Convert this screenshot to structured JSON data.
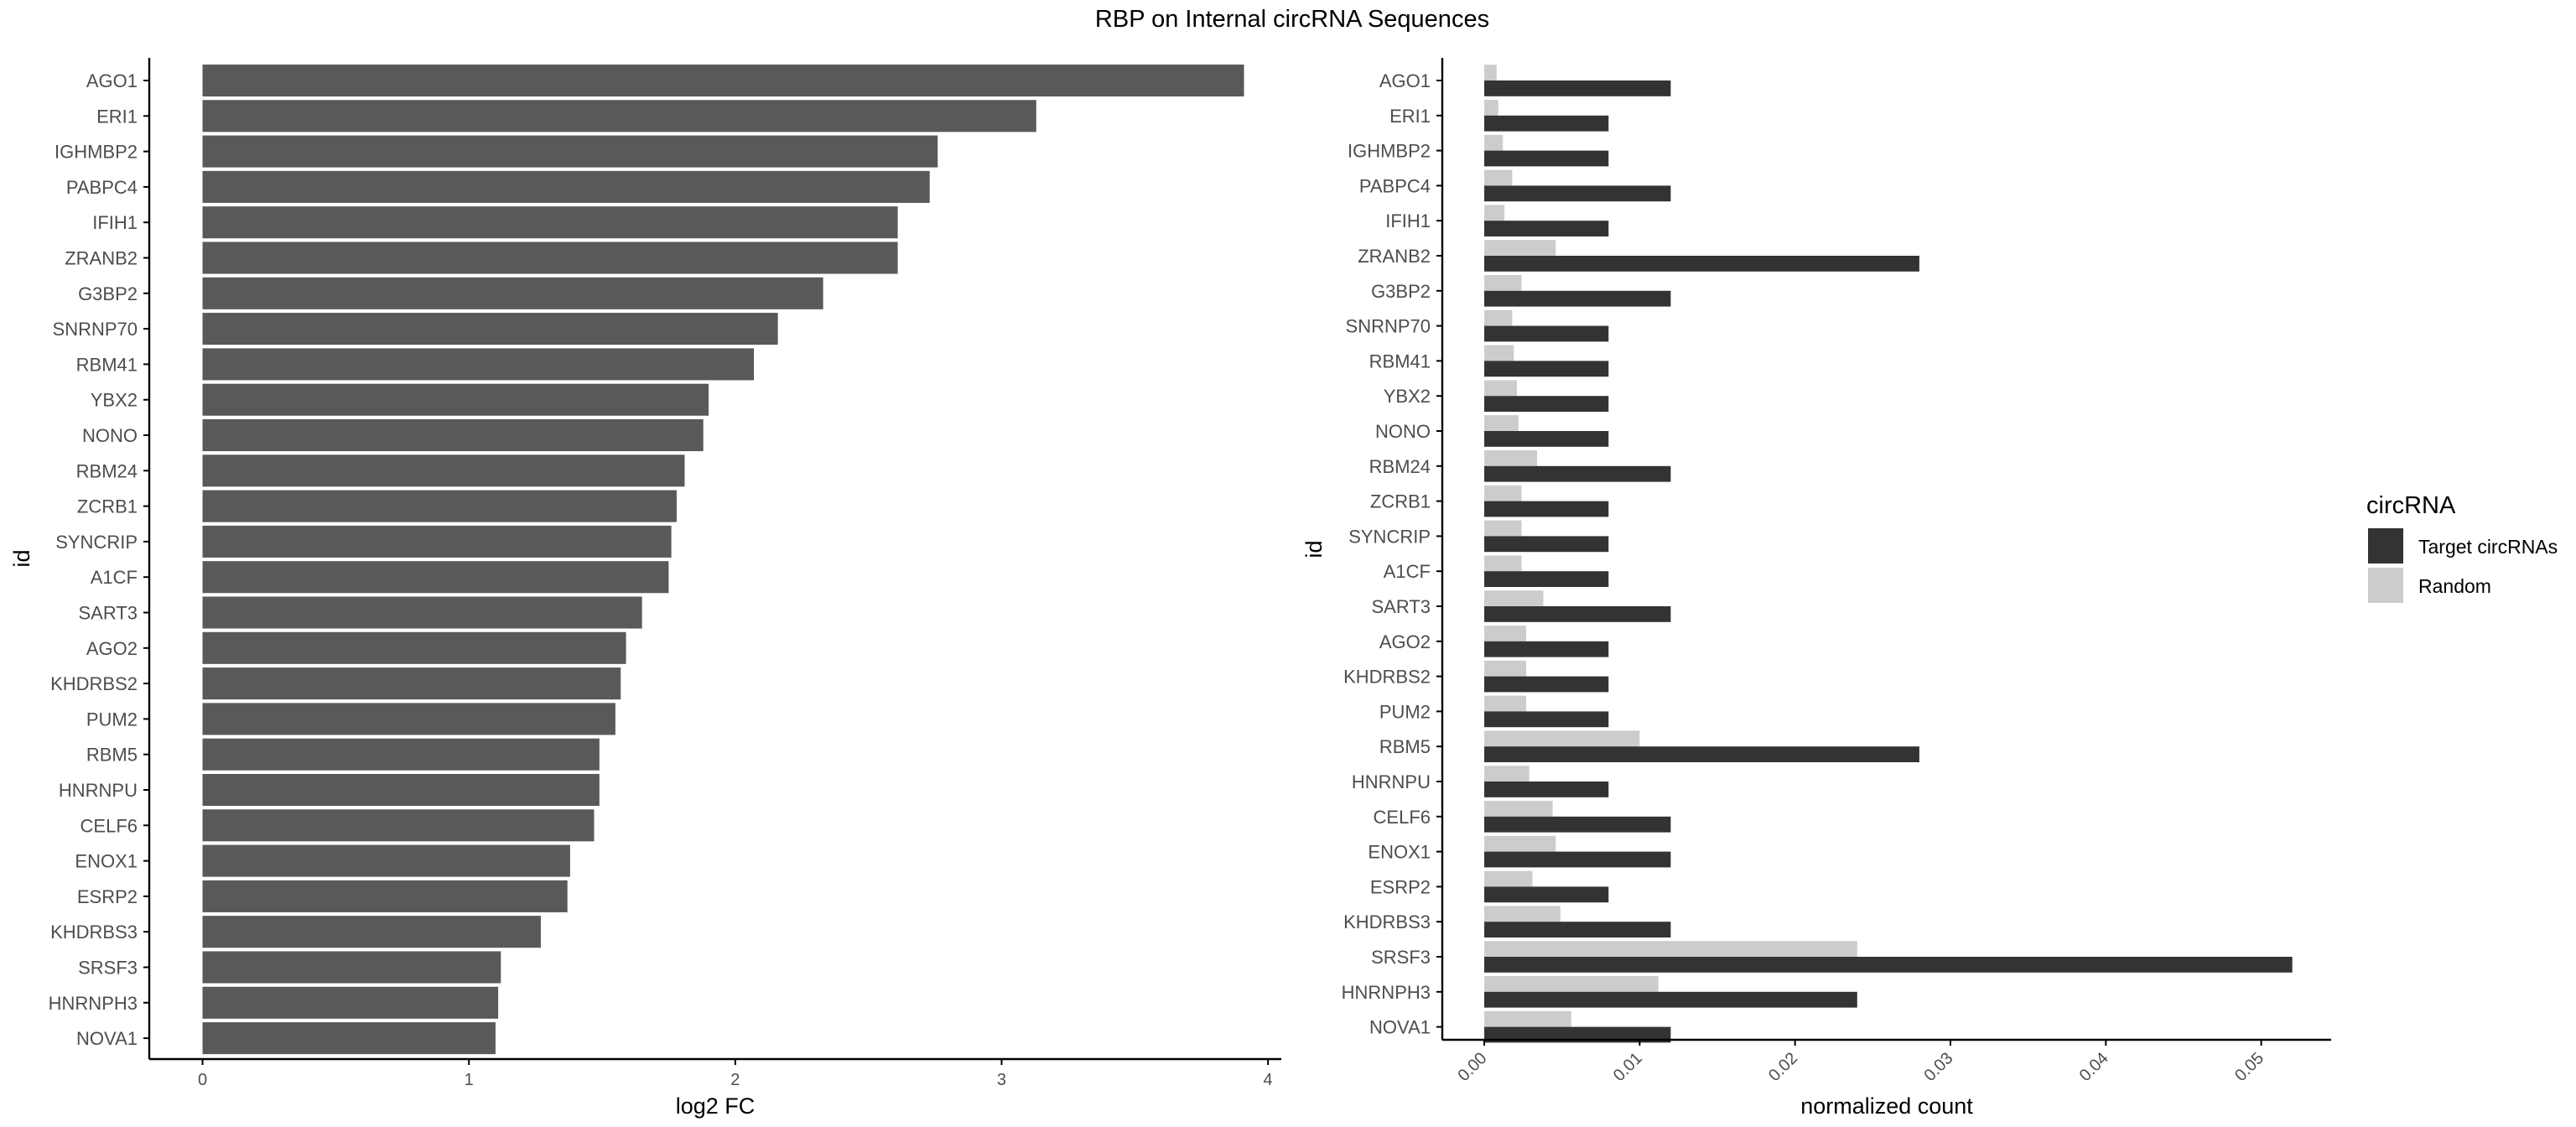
{
  "title": "RBP on Internal circRNA Sequences",
  "colors": {
    "bar_left": "#595959",
    "target": "#333333",
    "random": "#cccccc",
    "axis": "#000000",
    "tick_label": "#4d4d4d"
  },
  "chart_data": [
    {
      "type": "bar",
      "orientation": "horizontal",
      "xlabel": "log2 FC",
      "ylabel": "id",
      "xlim": [
        -0.2,
        4.05
      ],
      "xticks": [
        "0",
        "1",
        "2",
        "3",
        "4"
      ],
      "grid": false,
      "categories": [
        "AGO1",
        "ERI1",
        "IGHMBP2",
        "PABPC4",
        "IFIH1",
        "ZRANB2",
        "G3BP2",
        "SNRNP70",
        "RBM41",
        "YBX2",
        "NONO",
        "RBM24",
        "ZCRB1",
        "SYNCRIP",
        "A1CF",
        "SART3",
        "AGO2",
        "KHDRBS2",
        "PUM2",
        "RBM5",
        "HNRNPU",
        "CELF6",
        "ENOX1",
        "ESRP2",
        "KHDRBS3",
        "SRSF3",
        "HNRNPH3",
        "NOVA1"
      ],
      "values": [
        3.91,
        3.13,
        2.76,
        2.73,
        2.61,
        2.61,
        2.33,
        2.16,
        2.07,
        1.9,
        1.88,
        1.81,
        1.78,
        1.76,
        1.75,
        1.65,
        1.59,
        1.57,
        1.55,
        1.49,
        1.49,
        1.47,
        1.38,
        1.37,
        1.27,
        1.12,
        1.11,
        1.1
      ]
    },
    {
      "type": "bar",
      "orientation": "horizontal",
      "xlabel": "normalized count",
      "ylabel": "id",
      "xlim": [
        -0.0027,
        0.0545
      ],
      "xticks": [
        "0.00",
        "0.01",
        "0.02",
        "0.03",
        "0.04",
        "0.05"
      ],
      "grid": false,
      "legend": {
        "title": "circRNA",
        "position": "right"
      },
      "categories": [
        "AGO1",
        "ERI1",
        "IGHMBP2",
        "PABPC4",
        "IFIH1",
        "ZRANB2",
        "G3BP2",
        "SNRNP70",
        "RBM41",
        "YBX2",
        "NONO",
        "RBM24",
        "ZCRB1",
        "SYNCRIP",
        "A1CF",
        "SART3",
        "AGO2",
        "KHDRBS2",
        "PUM2",
        "RBM5",
        "HNRNPU",
        "CELF6",
        "ENOX1",
        "ESRP2",
        "KHDRBS3",
        "SRSF3",
        "HNRNPH3",
        "NOVA1"
      ],
      "series": [
        {
          "name": "Target circRNAs",
          "values": [
            0.012,
            0.008,
            0.008,
            0.012,
            0.008,
            0.028,
            0.012,
            0.008,
            0.008,
            0.008,
            0.008,
            0.012,
            0.008,
            0.008,
            0.008,
            0.012,
            0.008,
            0.008,
            0.008,
            0.028,
            0.008,
            0.012,
            0.012,
            0.008,
            0.012,
            0.052,
            0.024,
            0.012
          ]
        },
        {
          "name": "Random",
          "values": [
            0.0008,
            0.0009,
            0.0012,
            0.0018,
            0.0013,
            0.0046,
            0.0024,
            0.0018,
            0.0019,
            0.0021,
            0.0022,
            0.0034,
            0.0024,
            0.0024,
            0.0024,
            0.0038,
            0.0027,
            0.0027,
            0.0027,
            0.01,
            0.0029,
            0.0044,
            0.0046,
            0.0031,
            0.0049,
            0.024,
            0.0112,
            0.0056
          ]
        }
      ]
    }
  ]
}
